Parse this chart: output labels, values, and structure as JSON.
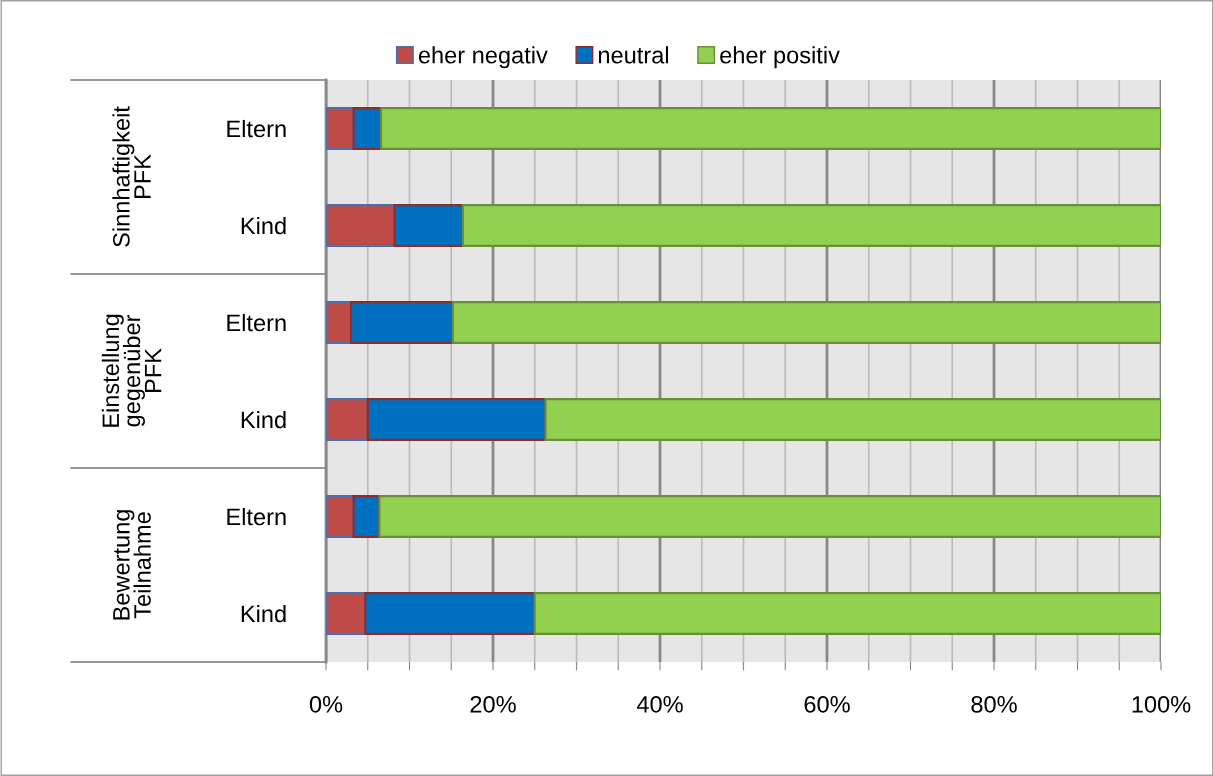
{
  "chart_data": {
    "type": "bar",
    "orientation": "horizontal",
    "stacked": true,
    "categories": [
      "Eltern",
      "Kind",
      "Eltern",
      "Kind",
      "Eltern",
      "Kind"
    ],
    "series": [
      {
        "name": "eher negativ",
        "color": "#be4b48",
        "values": [
          3.3,
          8.2,
          3.0,
          5.0,
          3.3,
          4.7
        ]
      },
      {
        "name": "neutral",
        "color": "#0070c0",
        "values": [
          3.3,
          8.2,
          12.2,
          21.3,
          3.1,
          20.3
        ]
      },
      {
        "name": "eher positiv",
        "color": "#92d050",
        "values": [
          93.4,
          83.6,
          84.8,
          73.7,
          93.6,
          75.0
        ]
      }
    ],
    "annotations": [
      "Sinnhaftigkeit\nPFK",
      "Einstellung\ngegenüber\nPFK",
      "Bewertung\nTeilnahme"
    ],
    "xlim": [
      0,
      100
    ],
    "xticks": [
      {
        "value": 0,
        "label": "0%"
      },
      {
        "value": 5,
        "label": null
      },
      {
        "value": 10,
        "label": null
      },
      {
        "value": 15,
        "label": null
      },
      {
        "value": 20,
        "label": "20%"
      },
      {
        "value": 25,
        "label": null
      },
      {
        "value": 30,
        "label": null
      },
      {
        "value": 35,
        "label": null
      },
      {
        "value": 40,
        "label": "40%"
      },
      {
        "value": 45,
        "label": null
      },
      {
        "value": 50,
        "label": null
      },
      {
        "value": 55,
        "label": null
      },
      {
        "value": 60,
        "label": "60%"
      },
      {
        "value": 65,
        "label": null
      },
      {
        "value": 70,
        "label": null
      },
      {
        "value": 75,
        "label": null
      },
      {
        "value": 80,
        "label": "80%"
      },
      {
        "value": 85,
        "label": null
      },
      {
        "value": 90,
        "label": null
      },
      {
        "value": 95,
        "label": null
      },
      {
        "value": 100,
        "label": "100%"
      }
    ],
    "grid": "x",
    "legend": "top"
  }
}
